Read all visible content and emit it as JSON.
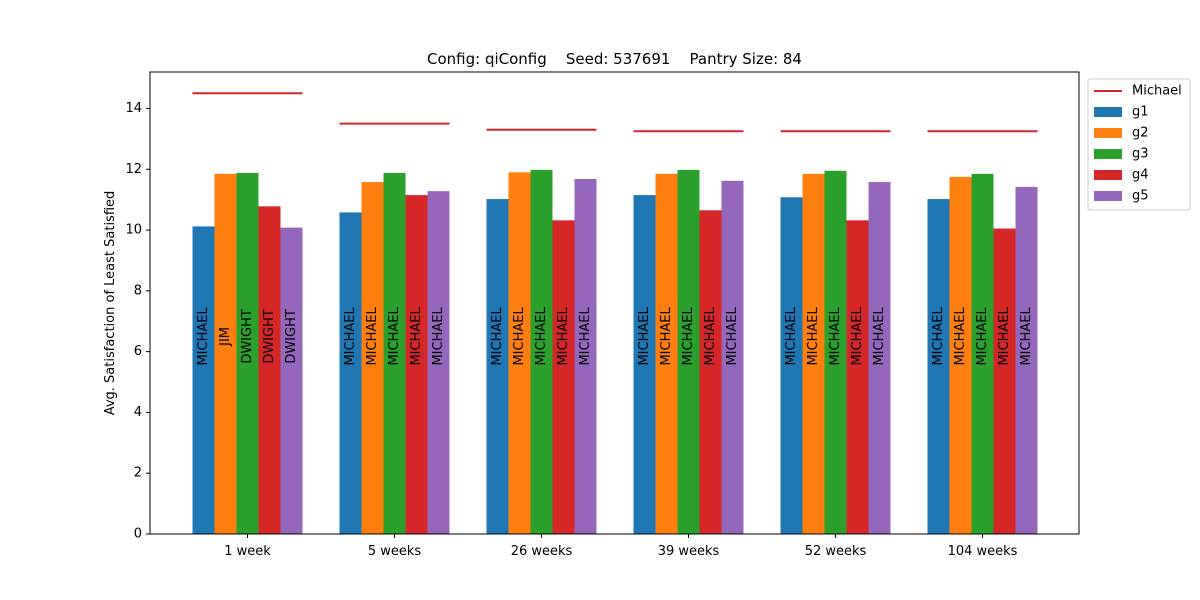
{
  "chart_data": {
    "type": "bar",
    "title": "Config: qiConfig    Seed: 537691    Pantry Size: 84",
    "xlabel": "",
    "ylabel": "Avg. Satisfaction of Least Satisfied",
    "categories": [
      "1 week",
      "5 weeks",
      "26 weeks",
      "39 weeks",
      "52 weeks",
      "104 weeks"
    ],
    "ylim": [
      0,
      15.2
    ],
    "yticks": [
      0,
      2,
      4,
      6,
      8,
      10,
      12,
      14
    ],
    "grid": false,
    "legend_position": "outside-top-right",
    "reference_line": {
      "name": "Michael",
      "color": "#d62728",
      "values": [
        14.5,
        13.5,
        13.3,
        13.25,
        13.25,
        13.25
      ]
    },
    "series": [
      {
        "name": "g1",
        "color": "#1f77b4",
        "values": [
          10.12,
          10.58,
          11.02,
          11.15,
          11.08,
          11.02
        ],
        "bar_labels": [
          "MICHAEL",
          "MICHAEL",
          "MICHAEL",
          "MICHAEL",
          "MICHAEL",
          "MICHAEL"
        ]
      },
      {
        "name": "g2",
        "color": "#ff7f0e",
        "values": [
          11.85,
          11.58,
          11.9,
          11.85,
          11.85,
          11.75
        ],
        "bar_labels": [
          "JIM",
          "MICHAEL",
          "MICHAEL",
          "MICHAEL",
          "MICHAEL",
          "MICHAEL"
        ]
      },
      {
        "name": "g3",
        "color": "#2ca02c",
        "values": [
          11.88,
          11.88,
          11.98,
          11.98,
          11.95,
          11.85
        ],
        "bar_labels": [
          "DWIGHT",
          "MICHAEL",
          "MICHAEL",
          "MICHAEL",
          "MICHAEL",
          "MICHAEL"
        ]
      },
      {
        "name": "g4",
        "color": "#d62728",
        "values": [
          10.78,
          11.15,
          10.32,
          10.65,
          10.32,
          10.05
        ],
        "bar_labels": [
          "DWIGHT",
          "MICHAEL",
          "MICHAEL",
          "MICHAEL",
          "MICHAEL",
          "MICHAEL"
        ]
      },
      {
        "name": "g5",
        "color": "#9467bd",
        "values": [
          10.08,
          11.28,
          11.68,
          11.62,
          11.58,
          11.42
        ],
        "bar_labels": [
          "DWIGHT",
          "MICHAEL",
          "MICHAEL",
          "MICHAEL",
          "MICHAEL",
          "MICHAEL"
        ]
      }
    ]
  }
}
